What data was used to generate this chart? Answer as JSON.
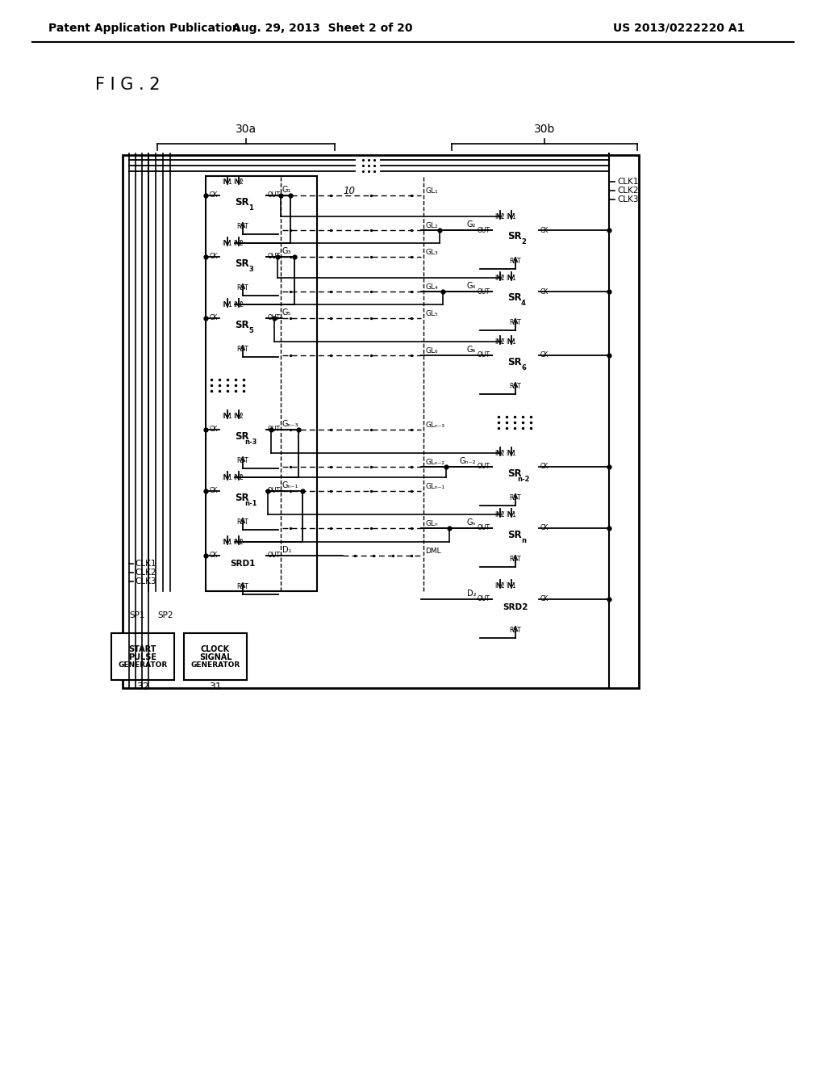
{
  "bg_color": "#ffffff",
  "header_left": "Patent Application Publication",
  "header_mid": "Aug. 29, 2013  Sheet 2 of 20",
  "header_right": "US 2013/0222220 A1",
  "fig_label": "F I G . 2"
}
